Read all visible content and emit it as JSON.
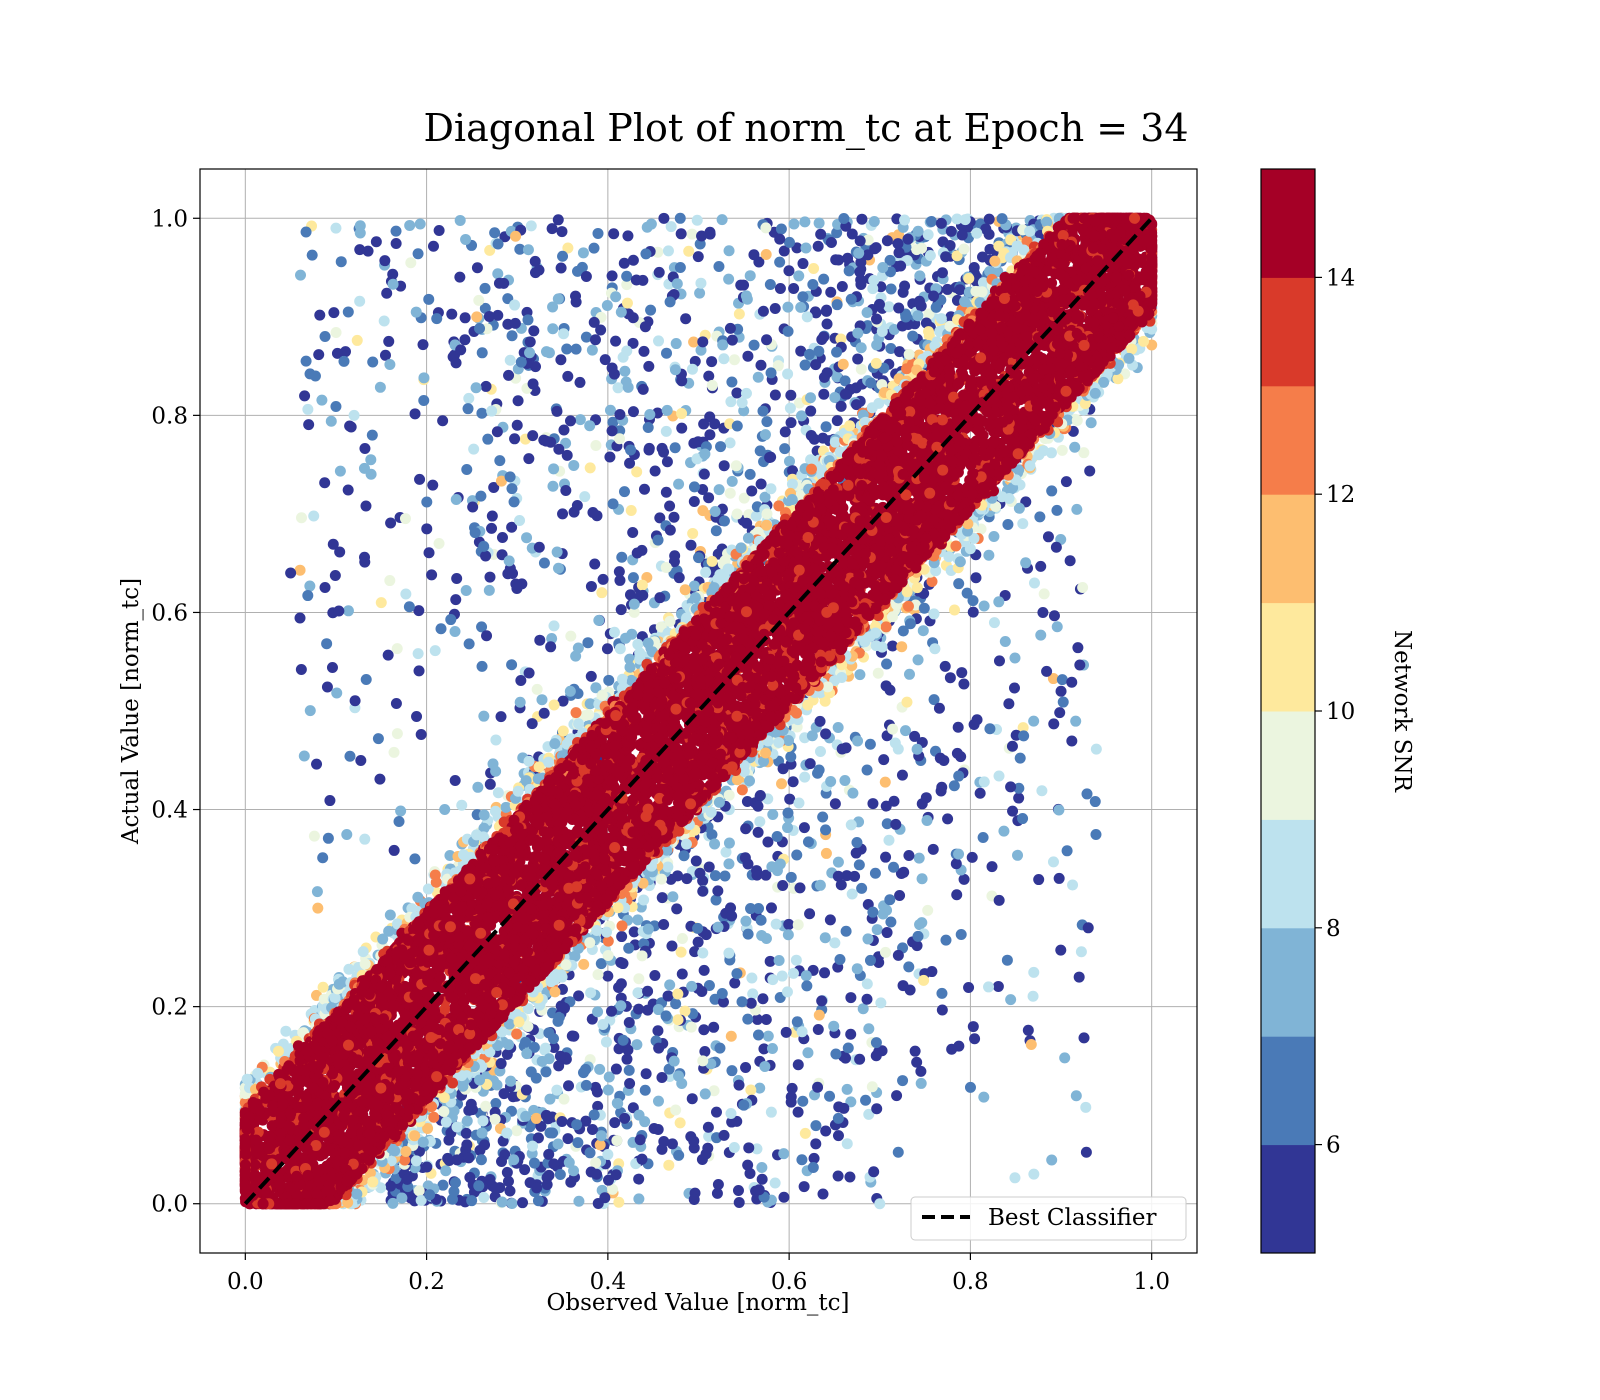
{
  "chart_data": {
    "type": "scatter",
    "title": "Diagonal Plot of norm_tc at Epoch = 34",
    "xlabel": "Observed Value [norm_tc]",
    "ylabel": "Actual Value [norm_tc]",
    "xlim": [
      -0.05,
      1.05
    ],
    "ylim": [
      -0.05,
      1.05
    ],
    "xticks": [
      "0.0",
      "0.2",
      "0.4",
      "0.6",
      "0.8",
      "1.0"
    ],
    "yticks": [
      "0.0",
      "0.2",
      "0.4",
      "0.6",
      "0.8",
      "1.0"
    ],
    "grid": true,
    "legend": {
      "placement": "lower-right",
      "entries": [
        {
          "label": "Best Classifier",
          "style": "black dashed line"
        }
      ]
    },
    "reference_line": {
      "label": "Best Classifier",
      "x": [
        0,
        1
      ],
      "y": [
        0,
        1
      ],
      "color": "#000000",
      "style": "dashed"
    },
    "colorbar": {
      "label": "Network SNR",
      "range": [
        5,
        15
      ],
      "ticks": [
        "6",
        "8",
        "10",
        "12",
        "14"
      ],
      "colormap": "RdYlBu_r",
      "levels": [
        {
          "from": 5,
          "to": 6,
          "color": "#313695"
        },
        {
          "from": 6,
          "to": 7,
          "color": "#4a7ab7"
        },
        {
          "from": 7,
          "to": 8,
          "color": "#80b4d6"
        },
        {
          "from": 8,
          "to": 9,
          "color": "#bde2ee"
        },
        {
          "from": 9,
          "to": 10,
          "color": "#ebf5df"
        },
        {
          "from": 10,
          "to": 11,
          "color": "#fee99d"
        },
        {
          "from": 11,
          "to": 12,
          "color": "#fdbe70"
        },
        {
          "from": 12,
          "to": 13,
          "color": "#f57d4a"
        },
        {
          "from": 13,
          "to": 14,
          "color": "#d93a2a"
        },
        {
          "from": 14,
          "to": 15,
          "color": "#a50026"
        }
      ]
    },
    "distribution": {
      "description_of_points": "dense high-SNR band around y = x, lower-SNR points spread widely off-diagonal",
      "x_range": [
        0,
        1
      ],
      "y_range": [
        0,
        1
      ]
    },
    "sample_points": [
      {
        "x": 0.1,
        "y": 0.99,
        "snr": 8.5
      },
      {
        "x": 0.05,
        "y": 0.64,
        "snr": 5.5
      },
      {
        "x": 0.08,
        "y": 0.3,
        "snr": 11.5
      },
      {
        "x": 0.12,
        "y": 0.8,
        "snr": 8.5
      },
      {
        "x": 0.93,
        "y": 0.28,
        "snr": 5.5
      },
      {
        "x": 0.92,
        "y": 0.23,
        "snr": 5.5
      },
      {
        "x": 0.87,
        "y": 0.03,
        "snr": 8.5
      },
      {
        "x": 0.88,
        "y": 0.6,
        "snr": 5.5
      },
      {
        "x": 0.9,
        "y": 0.52,
        "snr": 5.5
      },
      {
        "x": 0.82,
        "y": 0.22,
        "snr": 8.5
      },
      {
        "x": 0.7,
        "y": 0.0,
        "snr": 8.5
      },
      {
        "x": 0.3,
        "y": 0.79,
        "snr": 5.5
      },
      {
        "x": 0.15,
        "y": 0.61,
        "snr": 10.5
      },
      {
        "x": 0.62,
        "y": 0.9,
        "snr": 8.5
      },
      {
        "x": 0.48,
        "y": 0.95,
        "snr": 6.5
      },
      {
        "x": 0.55,
        "y": 0.1,
        "snr": 6.5
      },
      {
        "x": 0.4,
        "y": 0.05,
        "snr": 8.5
      },
      {
        "x": 0.68,
        "y": 0.32,
        "snr": 6.5
      },
      {
        "x": 0.35,
        "y": 0.7,
        "snr": 5.5
      },
      {
        "x": 0.22,
        "y": 0.4,
        "snr": 7.5
      }
    ]
  }
}
